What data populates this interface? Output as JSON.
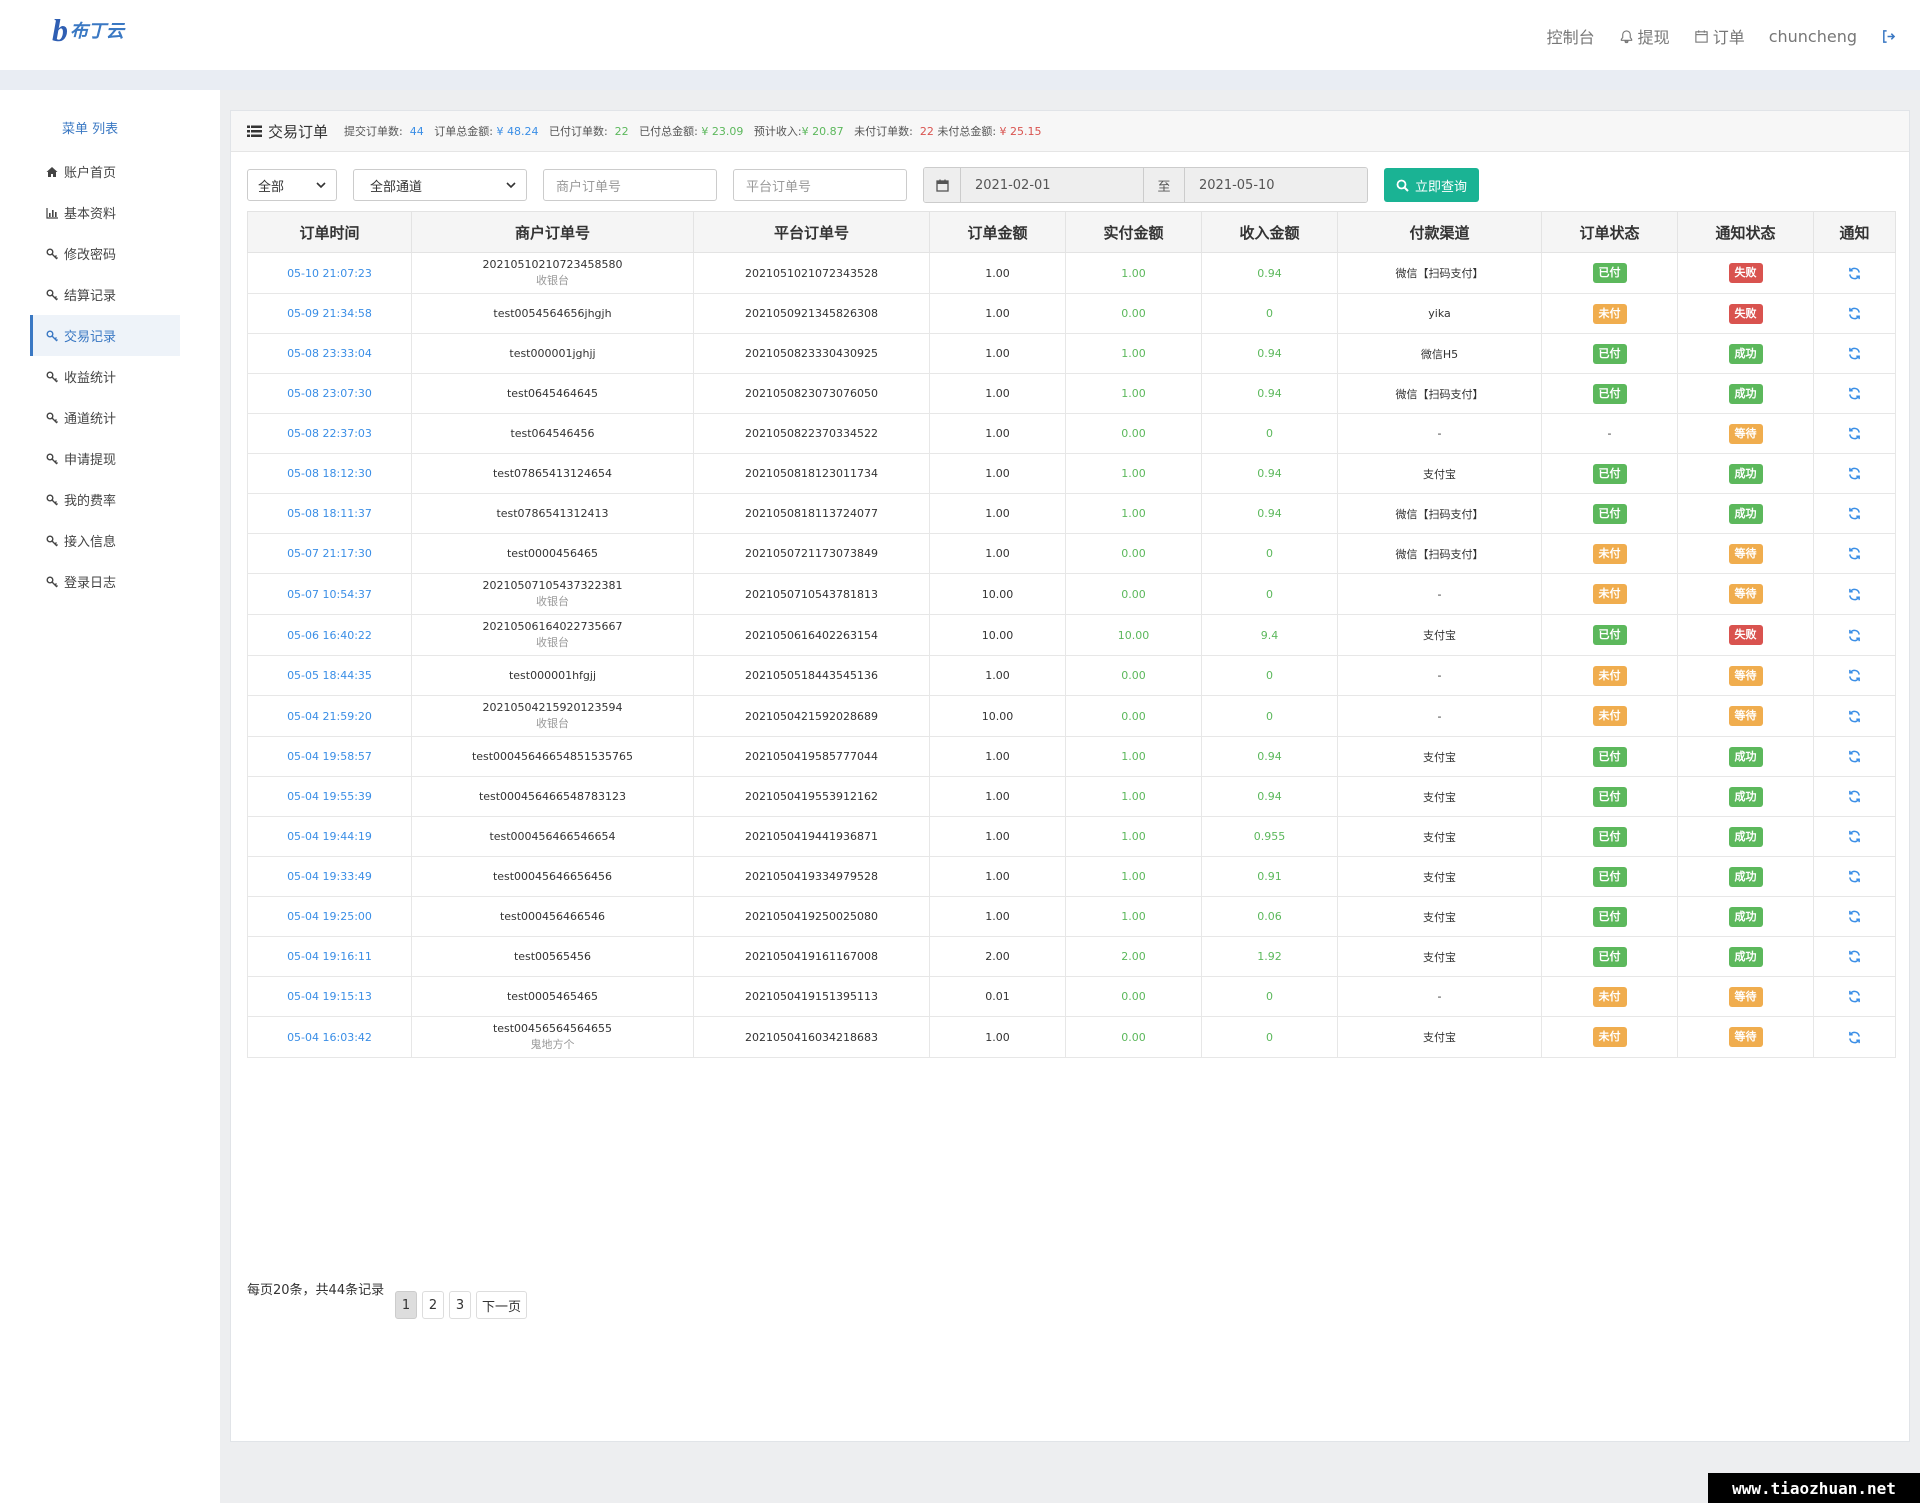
{
  "header": {
    "logo_mark": "b",
    "logo_text": "布丁云",
    "nav": {
      "console": "控制台",
      "withdraw": "提现",
      "orders": "订单",
      "username": "chuncheng"
    }
  },
  "sidebar": {
    "title": "菜单 列表",
    "items": [
      {
        "label": "账户首页",
        "icon": "home-icon"
      },
      {
        "label": "基本资料",
        "icon": "bar-chart-icon"
      },
      {
        "label": "修改密码",
        "icon": "key-icon"
      },
      {
        "label": "结算记录",
        "icon": "key-icon"
      },
      {
        "label": "交易记录",
        "icon": "key-icon",
        "active": true
      },
      {
        "label": "收益统计",
        "icon": "key-icon"
      },
      {
        "label": "通道统计",
        "icon": "key-icon"
      },
      {
        "label": "申请提现",
        "icon": "key-icon"
      },
      {
        "label": "我的费率",
        "icon": "key-icon"
      },
      {
        "label": "接入信息",
        "icon": "key-icon"
      },
      {
        "label": "登录日志",
        "icon": "key-icon"
      }
    ]
  },
  "panel": {
    "title": "交易订单",
    "stats": {
      "submitted_label": "提交订单数:",
      "submitted_value": "44",
      "total_amount_label": "订单总金额:",
      "total_amount_value": "¥ 48.24",
      "paid_count_label": "已付订单数:",
      "paid_count_value": "22",
      "paid_amount_label": "已付总金额:",
      "paid_amount_value": "¥ 23.09",
      "expected_income_label": "预计收入:",
      "expected_income_value": "¥ 20.87",
      "unpaid_count_label": "未付订单数:",
      "unpaid_count_value": "22",
      "unpaid_amount_label": "未付总金额:",
      "unpaid_amount_value": "¥ 25.15"
    }
  },
  "filters": {
    "status_select": "全部",
    "channel_select": "全部通道",
    "merchant_order_placeholder": "商户订单号",
    "platform_order_placeholder": "平台订单号",
    "date_from": "2021-02-01",
    "date_sep": "至",
    "date_to": "2021-05-10",
    "query_button": "立即查询"
  },
  "table": {
    "headers": [
      "订单时间",
      "商户订单号",
      "平台订单号",
      "订单金额",
      "实付金额",
      "收入金额",
      "付款渠道",
      "订单状态",
      "通知状态",
      "通知"
    ],
    "rows": [
      {
        "time": "05-10 21:07:23",
        "merchant": "20210510210723458580",
        "sub": "收银台",
        "platform": "2021051021072343528",
        "amount": "1.00",
        "paid": "1.00",
        "income": "0.94",
        "channel": "微信【扫码支付】",
        "status": "已付",
        "status_color": "green",
        "notify": "失败",
        "notify_color": "red"
      },
      {
        "time": "05-09 21:34:58",
        "merchant": "test0054564656jhgjh",
        "sub": "",
        "platform": "2021050921345826308",
        "amount": "1.00",
        "paid": "0.00",
        "income": "0",
        "channel": "yika",
        "status": "未付",
        "status_color": "orange",
        "notify": "失败",
        "notify_color": "red"
      },
      {
        "time": "05-08 23:33:04",
        "merchant": "test000001jghjj",
        "sub": "",
        "platform": "2021050823330430925",
        "amount": "1.00",
        "paid": "1.00",
        "income": "0.94",
        "channel": "微信H5",
        "status": "已付",
        "status_color": "green",
        "notify": "成功",
        "notify_color": "green"
      },
      {
        "time": "05-08 23:07:30",
        "merchant": "test0645464645",
        "sub": "",
        "platform": "2021050823073076050",
        "amount": "1.00",
        "paid": "1.00",
        "income": "0.94",
        "channel": "微信【扫码支付】",
        "status": "已付",
        "status_color": "green",
        "notify": "成功",
        "notify_color": "green"
      },
      {
        "time": "05-08 22:37:03",
        "merchant": "test064546456",
        "sub": "",
        "platform": "2021050822370334522",
        "amount": "1.00",
        "paid": "0.00",
        "income": "0",
        "channel": "-",
        "status": "-",
        "status_color": "",
        "notify": "等待",
        "notify_color": "orange"
      },
      {
        "time": "05-08 18:12:30",
        "merchant": "test07865413124654",
        "sub": "",
        "platform": "2021050818123011734",
        "amount": "1.00",
        "paid": "1.00",
        "income": "0.94",
        "channel": "支付宝",
        "status": "已付",
        "status_color": "green",
        "notify": "成功",
        "notify_color": "green"
      },
      {
        "time": "05-08 18:11:37",
        "merchant": "test0786541312413",
        "sub": "",
        "platform": "2021050818113724077",
        "amount": "1.00",
        "paid": "1.00",
        "income": "0.94",
        "channel": "微信【扫码支付】",
        "status": "已付",
        "status_color": "green",
        "notify": "成功",
        "notify_color": "green"
      },
      {
        "time": "05-07 21:17:30",
        "merchant": "test0000456465",
        "sub": "",
        "platform": "2021050721173073849",
        "amount": "1.00",
        "paid": "0.00",
        "income": "0",
        "channel": "微信【扫码支付】",
        "status": "未付",
        "status_color": "orange",
        "notify": "等待",
        "notify_color": "orange"
      },
      {
        "time": "05-07 10:54:37",
        "merchant": "20210507105437322381",
        "sub": "收银台",
        "platform": "2021050710543781813",
        "amount": "10.00",
        "paid": "0.00",
        "income": "0",
        "channel": "-",
        "status": "未付",
        "status_color": "orange",
        "notify": "等待",
        "notify_color": "orange"
      },
      {
        "time": "05-06 16:40:22",
        "merchant": "20210506164022735667",
        "sub": "收银台",
        "platform": "2021050616402263154",
        "amount": "10.00",
        "paid": "10.00",
        "income": "9.4",
        "channel": "支付宝",
        "status": "已付",
        "status_color": "green",
        "notify": "失败",
        "notify_color": "red"
      },
      {
        "time": "05-05 18:44:35",
        "merchant": "test000001hfgjj",
        "sub": "",
        "platform": "2021050518443545136",
        "amount": "1.00",
        "paid": "0.00",
        "income": "0",
        "channel": "-",
        "status": "未付",
        "status_color": "orange",
        "notify": "等待",
        "notify_color": "orange"
      },
      {
        "time": "05-04 21:59:20",
        "merchant": "20210504215920123594",
        "sub": "收银台",
        "platform": "2021050421592028689",
        "amount": "10.00",
        "paid": "0.00",
        "income": "0",
        "channel": "-",
        "status": "未付",
        "status_color": "orange",
        "notify": "等待",
        "notify_color": "orange"
      },
      {
        "time": "05-04 19:58:57",
        "merchant": "test00045646654851535765",
        "sub": "",
        "platform": "2021050419585777044",
        "amount": "1.00",
        "paid": "1.00",
        "income": "0.94",
        "channel": "支付宝",
        "status": "已付",
        "status_color": "green",
        "notify": "成功",
        "notify_color": "green"
      },
      {
        "time": "05-04 19:55:39",
        "merchant": "test000456466548783123",
        "sub": "",
        "platform": "2021050419553912162",
        "amount": "1.00",
        "paid": "1.00",
        "income": "0.94",
        "channel": "支付宝",
        "status": "已付",
        "status_color": "green",
        "notify": "成功",
        "notify_color": "green"
      },
      {
        "time": "05-04 19:44:19",
        "merchant": "test000456466546654",
        "sub": "",
        "platform": "2021050419441936871",
        "amount": "1.00",
        "paid": "1.00",
        "income": "0.955",
        "channel": "支付宝",
        "status": "已付",
        "status_color": "green",
        "notify": "成功",
        "notify_color": "green"
      },
      {
        "time": "05-04 19:33:49",
        "merchant": "test00045646656456",
        "sub": "",
        "platform": "2021050419334979528",
        "amount": "1.00",
        "paid": "1.00",
        "income": "0.91",
        "channel": "支付宝",
        "status": "已付",
        "status_color": "green",
        "notify": "成功",
        "notify_color": "green"
      },
      {
        "time": "05-04 19:25:00",
        "merchant": "test000456466546",
        "sub": "",
        "platform": "2021050419250025080",
        "amount": "1.00",
        "paid": "1.00",
        "income": "0.06",
        "channel": "支付宝",
        "status": "已付",
        "status_color": "green",
        "notify": "成功",
        "notify_color": "green"
      },
      {
        "time": "05-04 19:16:11",
        "merchant": "test00565456",
        "sub": "",
        "platform": "2021050419161167008",
        "amount": "2.00",
        "paid": "2.00",
        "income": "1.92",
        "channel": "支付宝",
        "status": "已付",
        "status_color": "green",
        "notify": "成功",
        "notify_color": "green"
      },
      {
        "time": "05-04 19:15:13",
        "merchant": "test0005465465",
        "sub": "",
        "platform": "2021050419151395113",
        "amount": "0.01",
        "paid": "0.00",
        "income": "0",
        "channel": "-",
        "status": "未付",
        "status_color": "orange",
        "notify": "等待",
        "notify_color": "orange"
      },
      {
        "time": "05-04 16:03:42",
        "merchant": "test00456564564655",
        "sub": "鬼地方个",
        "platform": "2021050416034218683",
        "amount": "1.00",
        "paid": "0.00",
        "income": "0",
        "channel": "支付宝",
        "status": "未付",
        "status_color": "orange",
        "notify": "等待",
        "notify_color": "orange"
      }
    ]
  },
  "pagination": {
    "info": "每页20条，共44条记录",
    "pages": [
      "1",
      "2",
      "3"
    ],
    "current": "1",
    "next": "下一页"
  },
  "watermark": "www.tiaozhuan.net",
  "colors": {
    "accent": "#3a78c3",
    "query_button": "#1ab394",
    "green": "#5cb85c",
    "orange": "#f0ad4e",
    "red": "#d9534f"
  }
}
